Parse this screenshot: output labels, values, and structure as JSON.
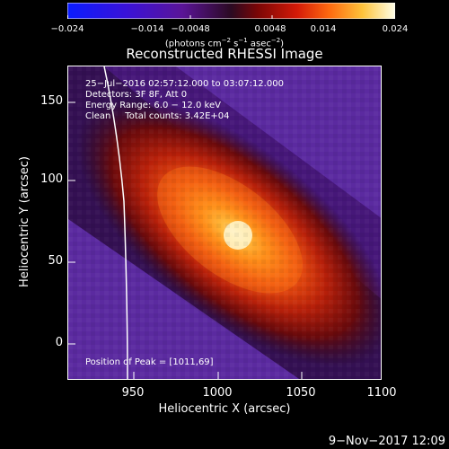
{
  "colorbar": {
    "tick_labels": [
      "−0.024",
      "−0.014",
      "−0.0048",
      "0.0048",
      "0.014",
      "0.024"
    ],
    "units_prefix": "(photons cm",
    "units_exp1": "−2",
    "units_mid1": " s",
    "units_exp2": "−1",
    "units_mid2": " asec",
    "units_exp3": "−2",
    "units_suffix": ")",
    "range": [
      -0.024,
      0.024
    ]
  },
  "image": {
    "title": "Reconstructed RHESSI Image",
    "time_range": "25−Jul−2016 02:57:12.000 to 03:07:12.000",
    "detectors": "Detectors: 3F 8F, Att 0",
    "energy_range": "Energy Range: 6.0 − 12.0 keV",
    "clean_label": "Clean",
    "total_counts": "Total counts: 3.42E+04",
    "peak_position": "Position of Peak = [1011,69]",
    "peak_xy": [
      1011,
      69
    ]
  },
  "axes": {
    "xlabel": "Heliocentric X (arcsec)",
    "ylabel": "Heliocentric Y (arcsec)",
    "xticks": [
      "950",
      "1000",
      "1050",
      "1100"
    ],
    "yticks": [
      "0",
      "50",
      "100",
      "150"
    ],
    "xlim": [
      910,
      1100
    ],
    "ylim": [
      -22,
      168
    ]
  },
  "footer": {
    "generated": "9−Nov−2017 12:09"
  }
}
